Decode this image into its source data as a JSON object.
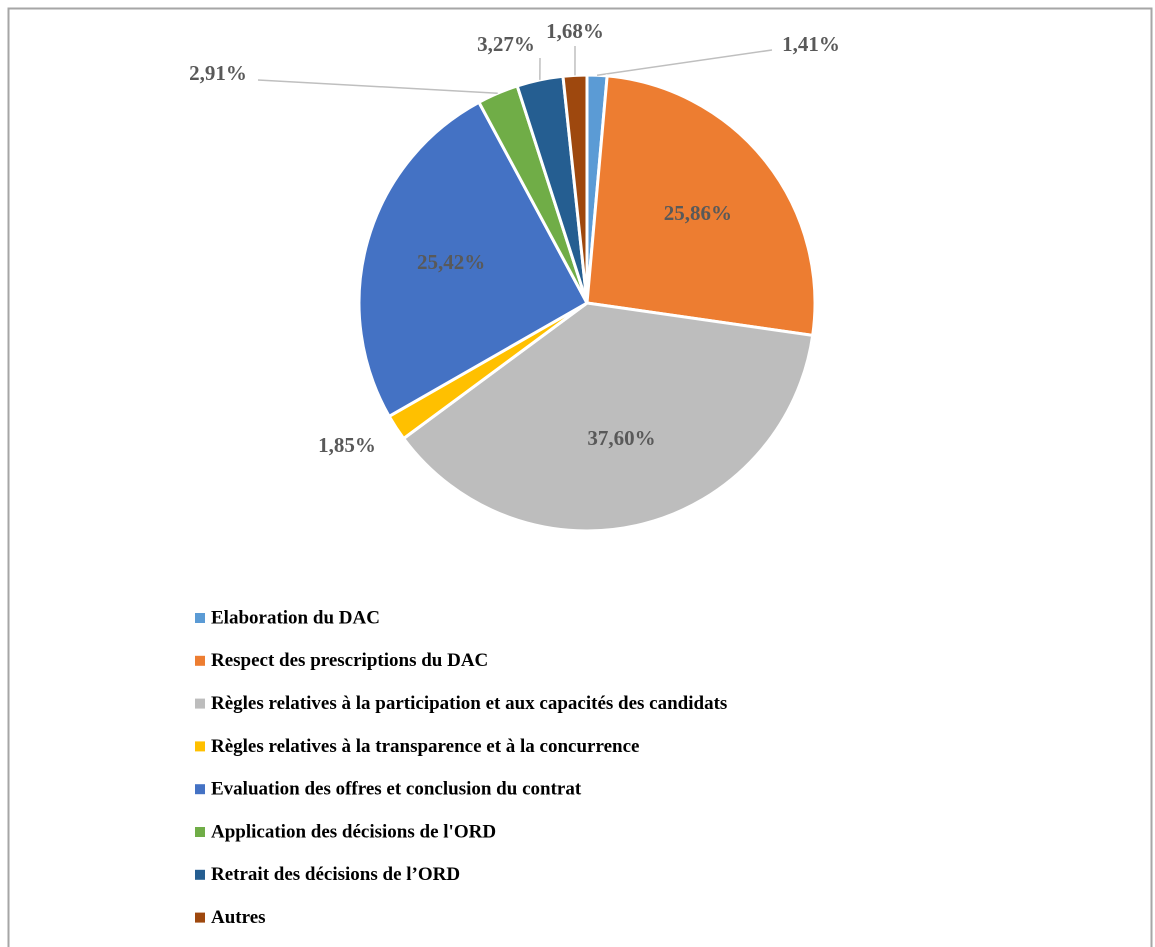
{
  "chart_data": {
    "type": "pie",
    "categories": [
      "Elaboration du DAC",
      "Respect des prescriptions du DAC",
      "Règles relatives à la participation et aux capacités des candidats",
      "Règles relatives à la transparence et à la concurrence",
      "Evaluation des offres et conclusion du contrat",
      "Application des décisions de l'ORD",
      "Retrait des décisions de l’ORD",
      "Autres"
    ],
    "values": [
      1.41,
      25.86,
      37.6,
      1.85,
      25.42,
      2.91,
      3.27,
      1.68
    ],
    "value_labels": [
      "1,41%",
      "25,86%",
      "37,60%",
      "1,85%",
      "25,42%",
      "2,91%",
      "3,27%",
      "1,68%"
    ],
    "colors": [
      "#5b9bd5",
      "#ed7d31",
      "#bdbdbd",
      "#ffc000",
      "#4472c4",
      "#70ad47",
      "#255e91",
      "#9e480e"
    ],
    "legend": "bottom"
  }
}
